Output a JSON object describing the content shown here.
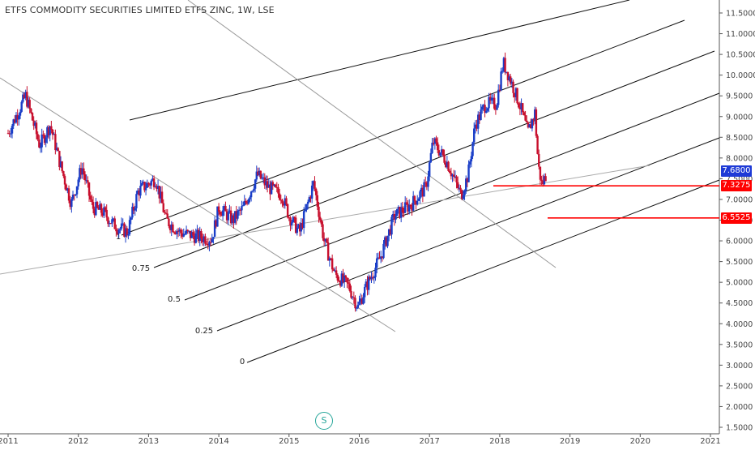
{
  "chart_data": {
    "type": "candlestick",
    "title": "ETFS COMMODITY SECURITIES LIMITED ETFS ZINC, 1W, LSE",
    "x_axis": {
      "tick_labels": [
        "2011",
        "2012",
        "2013",
        "2014",
        "2015",
        "2016",
        "2017",
        "2018",
        "2019",
        "2020",
        "2021"
      ],
      "range": [
        2011.0,
        2021.0
      ]
    },
    "y_axis": {
      "tick_labels": [
        "1.5000",
        "2.0000",
        "2.5000",
        "3.0000",
        "3.5000",
        "4.0000",
        "4.5000",
        "5.0000",
        "5.5000",
        "6.0000",
        "6.5000",
        "7.0000",
        "7.5000",
        "8.0000",
        "8.5000",
        "9.0000",
        "9.5000",
        "10.0000",
        "10.5000",
        "11.0000",
        "11.5000"
      ],
      "range": [
        1.5,
        11.5
      ],
      "position": "right"
    },
    "price_path": [
      [
        2011.0,
        8.6
      ],
      [
        2011.25,
        9.5
      ],
      [
        2011.45,
        8.3
      ],
      [
        2011.6,
        8.8
      ],
      [
        2011.75,
        7.8
      ],
      [
        2011.9,
        6.9
      ],
      [
        2012.05,
        7.8
      ],
      [
        2012.2,
        6.8
      ],
      [
        2012.35,
        6.7
      ],
      [
        2012.5,
        6.4
      ],
      [
        2012.7,
        6.2
      ],
      [
        2012.85,
        7.2
      ],
      [
        2013.1,
        7.5
      ],
      [
        2013.25,
        6.5
      ],
      [
        2013.45,
        6.2
      ],
      [
        2013.7,
        6.1
      ],
      [
        2013.9,
        6.05
      ],
      [
        2014.0,
        6.8
      ],
      [
        2014.2,
        6.5
      ],
      [
        2014.35,
        6.8
      ],
      [
        2014.55,
        7.6
      ],
      [
        2014.7,
        7.3
      ],
      [
        2014.9,
        7.1
      ],
      [
        2015.0,
        6.6
      ],
      [
        2015.15,
        6.2
      ],
      [
        2015.35,
        7.4
      ],
      [
        2015.5,
        6.0
      ],
      [
        2015.65,
        5.2
      ],
      [
        2015.85,
        4.9
      ],
      [
        2015.98,
        4.4
      ],
      [
        2016.1,
        4.9
      ],
      [
        2016.3,
        5.6
      ],
      [
        2016.5,
        6.6
      ],
      [
        2016.75,
        6.9
      ],
      [
        2016.95,
        7.3
      ],
      [
        2017.05,
        8.4
      ],
      [
        2017.25,
        7.9
      ],
      [
        2017.45,
        7.1
      ],
      [
        2017.55,
        7.6
      ],
      [
        2017.65,
        8.8
      ],
      [
        2017.8,
        9.3
      ],
      [
        2017.95,
        9.3
      ],
      [
        2018.05,
        10.3
      ],
      [
        2018.15,
        9.9
      ],
      [
        2018.3,
        9.2
      ],
      [
        2018.4,
        8.6
      ],
      [
        2018.5,
        9.1
      ],
      [
        2018.55,
        7.8
      ],
      [
        2018.6,
        7.35
      ],
      [
        2018.66,
        7.6
      ]
    ],
    "horizontal_levels": [
      {
        "value": 7.3275,
        "label": "7.3275",
        "color": "#ff0000"
      },
      {
        "value": 6.5525,
        "label": "6.5525",
        "color": "#ff0000"
      }
    ],
    "last_price": {
      "value": 7.68,
      "label": "7.6800",
      "color": "#1e3ad6"
    },
    "pitchfork_levels": [
      "1",
      "0.75",
      "0.5",
      "0.25",
      "0"
    ],
    "colors": {
      "up": "#1a3ec8",
      "down": "#c8102e",
      "grid": "#ffffff",
      "axis": "#555555"
    },
    "grid": false,
    "badge": "S"
  }
}
